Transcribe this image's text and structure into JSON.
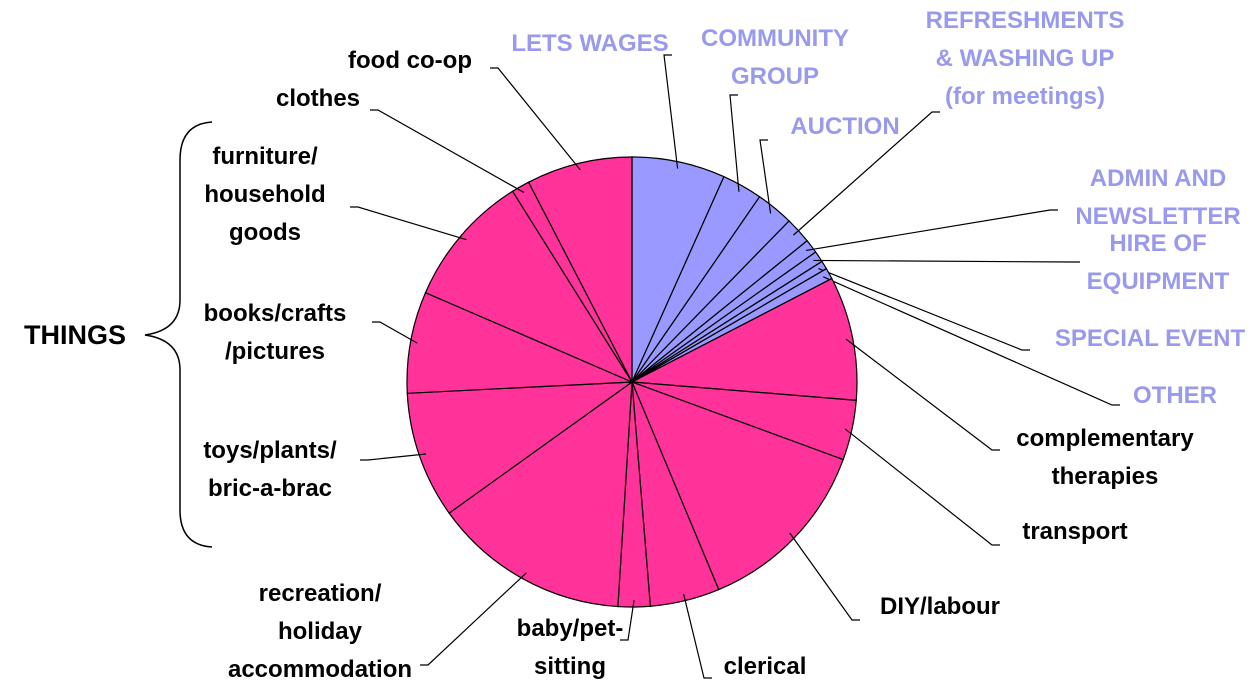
{
  "chart_data": {
    "type": "pie",
    "annotation": "THINGS",
    "categories": [
      "LETS WAGES",
      "COMMUNITY\nGROUP",
      "AUCTION",
      "REFRESHMENTS\n& WASHING UP\n(for meetings)",
      "ADMIN AND\nNEWSLETTER",
      "HIRE OF\nEQUIPMENT",
      "SPECIAL EVENT",
      "OTHER",
      "complementary\ntherapies",
      "transport",
      "DIY/labour",
      "clerical",
      "baby/pet-\nsitting",
      "recreation/\nholiday\naccommodation",
      "toys/plants/\nbric-a-brac",
      "books/crafts\n/pictures",
      "furniture/\nhousehold\ngoods",
      "clothes",
      "food co-op"
    ],
    "values": [
      6.7,
      2.9,
      2.7,
      1.9,
      1,
      0.8,
      0.6,
      0.8,
      8.9,
      4.3,
      13.1,
      5,
      2.3,
      14.1,
      9.1,
      7.3,
      9.6,
      1.3,
      7.6
    ],
    "colors": [
      "#9999ff",
      "#9999ff",
      "#9999ff",
      "#9999ff",
      "#9999ff",
      "#9999ff",
      "#9999ff",
      "#9999ff",
      "#ff3399",
      "#ff3399",
      "#ff3399",
      "#ff3399",
      "#ff3399",
      "#ff3399",
      "#ff3399",
      "#ff3399",
      "#ff3399",
      "#ff3399",
      "#ff3399"
    ],
    "label_colors": [
      "#9999ee",
      "#9999ee",
      "#9999ee",
      "#9999ee",
      "#9999ee",
      "#9999ee",
      "#9999ee",
      "#9999ee",
      "#000000",
      "#000000",
      "#000000",
      "#000000",
      "#000000",
      "#000000",
      "#000000",
      "#000000",
      "#000000",
      "#000000",
      "#000000"
    ]
  }
}
